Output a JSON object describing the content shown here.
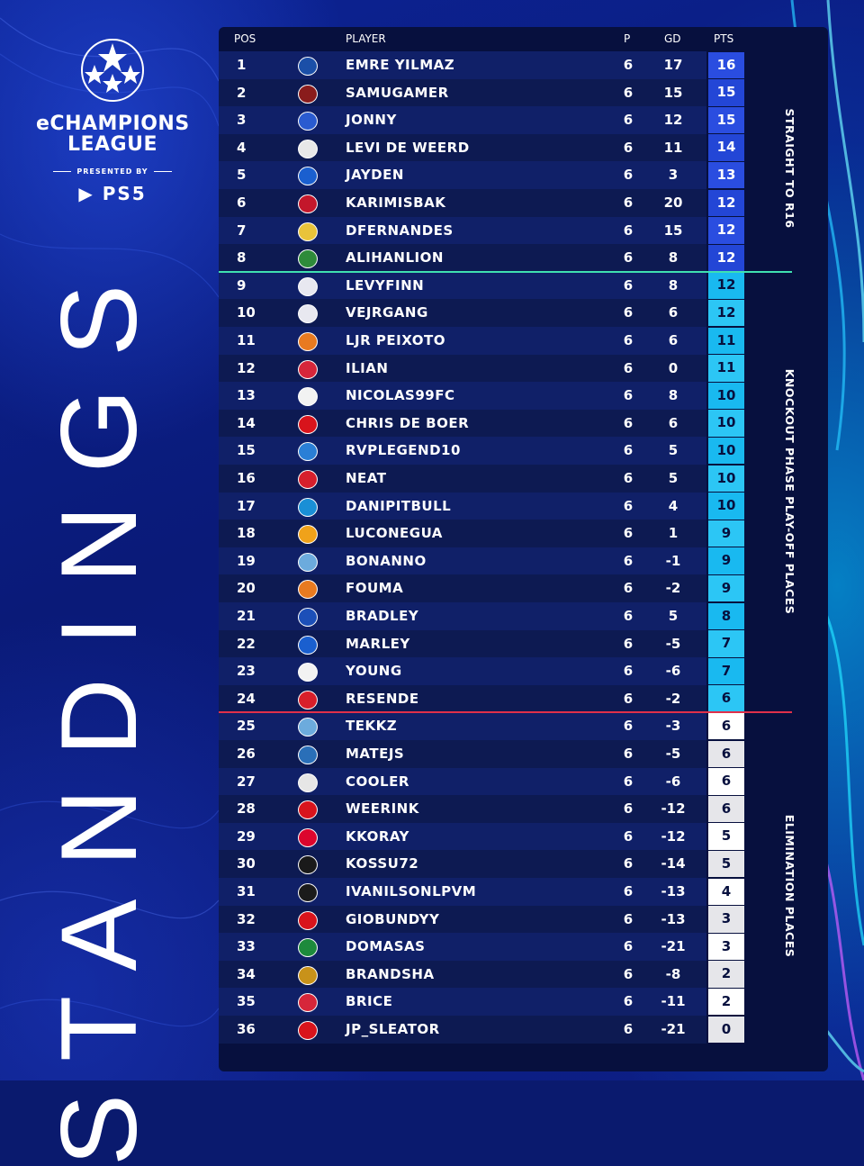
{
  "brand": {
    "name_line1": "eCHAMPIONS",
    "name_line2": "LEAGUE",
    "presented_by": "PRESENTED BY",
    "sponsor": "PS5"
  },
  "title": "STANDINGS",
  "headers": {
    "pos": "POS",
    "player": "PLAYER",
    "p": "P",
    "gd": "GD",
    "pts": "PTS"
  },
  "zones": {
    "top": "STRAIGHT TO R16",
    "middle": "KNOCKOUT PHASE PLAY-OFF PLACES",
    "bottom": "ELIMINATION PLACES"
  },
  "colors": {
    "background": "#0a1a6e",
    "panel": "#07103e",
    "top_divider": "#3fe0b0",
    "bottom_divider": "#e0304a",
    "pts_top": "#2a4de0",
    "pts_mid": "#19b9f0",
    "pts_bottom": "#ffffff"
  },
  "rows": [
    {
      "pos": "1",
      "player": "EMRE YILMAZ",
      "p": "6",
      "gd": "17",
      "pts": "16",
      "crest": "real-sociedad-crest",
      "crest_color": "#1b4fa8"
    },
    {
      "pos": "2",
      "player": "SAMUGAMER",
      "p": "6",
      "gd": "15",
      "pts": "15",
      "crest": "torino-crest",
      "crest_color": "#8a1c1c"
    },
    {
      "pos": "3",
      "player": "JONNY",
      "p": "6",
      "gd": "12",
      "pts": "15",
      "crest": "bochum-crest",
      "crest_color": "#2a5bd0"
    },
    {
      "pos": "4",
      "player": "LEVI DE WEERD",
      "p": "6",
      "gd": "11",
      "pts": "14",
      "crest": "ajax-crest",
      "crest_color": "#e8e8e8"
    },
    {
      "pos": "5",
      "player": "JAYDEN",
      "p": "6",
      "gd": "3",
      "pts": "13",
      "crest": "brighton-crest",
      "crest_color": "#1a5fcf"
    },
    {
      "pos": "6",
      "player": "KARIMISBAK",
      "p": "6",
      "gd": "20",
      "pts": "12",
      "crest": "genoa-crest",
      "crest_color": "#c3172b"
    },
    {
      "pos": "7",
      "player": "DFERNANDES",
      "p": "6",
      "gd": "15",
      "pts": "12",
      "crest": "cadiz-crest",
      "crest_color": "#e9c33a"
    },
    {
      "pos": "8",
      "player": "ALIHANLION",
      "p": "6",
      "gd": "8",
      "pts": "12",
      "crest": "ludogorets-crest",
      "crest_color": "#2e8b3a"
    },
    {
      "pos": "9",
      "player": "LEVYFINN",
      "p": "6",
      "gd": "8",
      "pts": "12",
      "crest": "leipzig-crest",
      "crest_color": "#e8e8f0"
    },
    {
      "pos": "10",
      "player": "VEJRGANG",
      "p": "6",
      "gd": "6",
      "pts": "12",
      "crest": "leipzig-crest",
      "crest_color": "#e8e8f0"
    },
    {
      "pos": "11",
      "player": "LJR PEIXOTO",
      "p": "6",
      "gd": "6",
      "pts": "11",
      "crest": "lorient-crest",
      "crest_color": "#e87a20"
    },
    {
      "pos": "12",
      "player": "ILIAN",
      "p": "6",
      "gd": "0",
      "pts": "11",
      "crest": "lille-crest",
      "crest_color": "#d6263a"
    },
    {
      "pos": "13",
      "player": "NICOLAS99FC",
      "p": "6",
      "gd": "8",
      "pts": "10",
      "crest": "sevilla-crest",
      "crest_color": "#f2f2f2"
    },
    {
      "pos": "14",
      "player": "CHRIS DE BOER",
      "p": "6",
      "gd": "6",
      "pts": "10",
      "crest": "az-crest",
      "crest_color": "#d8141c"
    },
    {
      "pos": "15",
      "player": "RVPLEGEND10",
      "p": "6",
      "gd": "5",
      "pts": "10",
      "crest": "craiova-crest",
      "crest_color": "#2a7fd6"
    },
    {
      "pos": "16",
      "player": "NEAT",
      "p": "6",
      "gd": "5",
      "pts": "10",
      "crest": "sion-crest",
      "crest_color": "#d61f2c"
    },
    {
      "pos": "17",
      "player": "DANIPITBULL",
      "p": "6",
      "gd": "4",
      "pts": "10",
      "crest": "napoli-crest",
      "crest_color": "#1a8fd6"
    },
    {
      "pos": "18",
      "player": "LUCONEGUA",
      "p": "6",
      "gd": "1",
      "pts": "9",
      "crest": "roma-crest",
      "crest_color": "#f0a21a"
    },
    {
      "pos": "19",
      "player": "BONANNO",
      "p": "6",
      "gd": "-1",
      "pts": "9",
      "crest": "man-city-crest",
      "crest_color": "#6cabdd"
    },
    {
      "pos": "20",
      "player": "FOUMA",
      "p": "6",
      "gd": "-2",
      "pts": "9",
      "crest": "lorient-crest",
      "crest_color": "#e87a20"
    },
    {
      "pos": "21",
      "player": "BRADLEY",
      "p": "6",
      "gd": "5",
      "pts": "8",
      "crest": "gent-crest",
      "crest_color": "#1c4fb8"
    },
    {
      "pos": "22",
      "player": "MARLEY",
      "p": "6",
      "gd": "-5",
      "pts": "7",
      "crest": "brighton-crest",
      "crest_color": "#1a5fcf"
    },
    {
      "pos": "23",
      "player": "YOUNG",
      "p": "6",
      "gd": "-6",
      "pts": "7",
      "crest": "boavista-crest",
      "crest_color": "#f2f2f2"
    },
    {
      "pos": "24",
      "player": "RESENDE",
      "p": "6",
      "gd": "-2",
      "pts": "6",
      "crest": "gijon-crest",
      "crest_color": "#d81f2a"
    },
    {
      "pos": "25",
      "player": "TEKKZ",
      "p": "6",
      "gd": "-3",
      "pts": "6",
      "crest": "man-city-crest",
      "crest_color": "#6cabdd"
    },
    {
      "pos": "26",
      "player": "MATEJS",
      "p": "6",
      "gd": "-5",
      "pts": "6",
      "crest": "rfs-crest",
      "crest_color": "#2a6fb8"
    },
    {
      "pos": "27",
      "player": "COOLER",
      "p": "6",
      "gd": "-6",
      "pts": "6",
      "crest": "hajduk-crest",
      "crest_color": "#e6e6e6"
    },
    {
      "pos": "28",
      "player": "WEERINK",
      "p": "6",
      "gd": "-12",
      "pts": "6",
      "crest": "twente-crest",
      "crest_color": "#d8141c"
    },
    {
      "pos": "29",
      "player": "KKORAY",
      "p": "6",
      "gd": "-12",
      "pts": "5",
      "crest": "bayern-crest",
      "crest_color": "#dc052d"
    },
    {
      "pos": "30",
      "player": "KOSSU72",
      "p": "6",
      "gd": "-14",
      "pts": "5",
      "crest": "ac-horsens-crest",
      "crest_color": "#1a1a1a"
    },
    {
      "pos": "31",
      "player": "IVANILSONLPVM",
      "p": "6",
      "gd": "-13",
      "pts": "4",
      "crest": "bissa-crest",
      "crest_color": "#1b1b1b"
    },
    {
      "pos": "32",
      "player": "GIOBUNDYY",
      "p": "6",
      "gd": "-13",
      "pts": "3",
      "crest": "salzburg-crest",
      "crest_color": "#d8141c"
    },
    {
      "pos": "33",
      "player": "DOMASAS",
      "p": "6",
      "gd": "-21",
      "pts": "3",
      "crest": "zalgiris-crest",
      "crest_color": "#1d8a3c"
    },
    {
      "pos": "34",
      "player": "BRANDSHA",
      "p": "6",
      "gd": "-8",
      "pts": "2",
      "crest": "valerenga-crest",
      "crest_color": "#c8921a"
    },
    {
      "pos": "35",
      "player": "BRICE",
      "p": "6",
      "gd": "-11",
      "pts": "2",
      "crest": "lille-crest",
      "crest_color": "#d6263a"
    },
    {
      "pos": "36",
      "player": "JP_SLEATOR",
      "p": "6",
      "gd": "-21",
      "pts": "0",
      "crest": "shelbourne-crest",
      "crest_color": "#d8141c"
    }
  ]
}
